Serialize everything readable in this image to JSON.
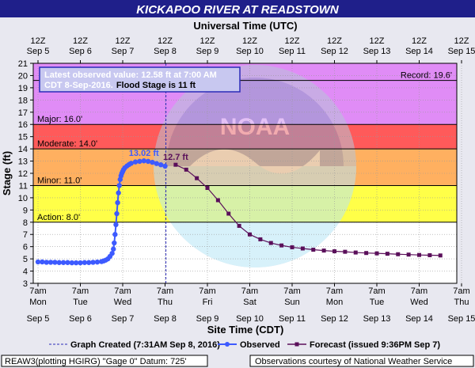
{
  "watermark": {
    "noaa": "NOAA"
  },
  "chart_data": {
    "type": "line",
    "title": "KICKAPOO RIVER AT READSTOWN",
    "top_axis_label": "Universal Time (UTC)",
    "xlabel": "Site Time (CDT)",
    "ylabel": "Stage (ft)",
    "ylim": [
      3,
      21
    ],
    "yticks": [
      3,
      4,
      5,
      6,
      7,
      8,
      9,
      10,
      11,
      12,
      13,
      14,
      15,
      16,
      17,
      18,
      19,
      20,
      21
    ],
    "x_unit": "days after Sep 5 7am CDT",
    "xlim": [
      0,
      10
    ],
    "top_ticks": [
      {
        "x": 0,
        "line1": "12Z",
        "line2": "Sep  5"
      },
      {
        "x": 1,
        "line1": "12Z",
        "line2": "Sep  6"
      },
      {
        "x": 2,
        "line1": "12Z",
        "line2": "Sep  7"
      },
      {
        "x": 3,
        "line1": "12Z",
        "line2": "Sep  8"
      },
      {
        "x": 4,
        "line1": "12Z",
        "line2": "Sep  9"
      },
      {
        "x": 5,
        "line1": "12Z",
        "line2": "Sep 10"
      },
      {
        "x": 6,
        "line1": "12Z",
        "line2": "Sep 11"
      },
      {
        "x": 7,
        "line1": "12Z",
        "line2": "Sep 12"
      },
      {
        "x": 8,
        "line1": "12Z",
        "line2": "Sep 13"
      },
      {
        "x": 9,
        "line1": "12Z",
        "line2": "Sep 14"
      },
      {
        "x": 10,
        "line1": "12Z",
        "line2": "Sep 15"
      }
    ],
    "bottom_ticks": [
      {
        "x": 0,
        "time": "7am",
        "day": "Mon",
        "date": "Sep 5"
      },
      {
        "x": 1,
        "time": "7am",
        "day": "Tue",
        "date": "Sep 6"
      },
      {
        "x": 2,
        "time": "7am",
        "day": "Wed",
        "date": "Sep 7"
      },
      {
        "x": 3,
        "time": "7am",
        "day": "Thu",
        "date": "Sep 8"
      },
      {
        "x": 4,
        "time": "7am",
        "day": "Fri",
        "date": "Sep 9"
      },
      {
        "x": 5,
        "time": "7am",
        "day": "Sat",
        "date": "Sep 10"
      },
      {
        "x": 6,
        "time": "7am",
        "day": "Sun",
        "date": "Sep 11"
      },
      {
        "x": 7,
        "time": "7am",
        "day": "Mon",
        "date": "Sep 12"
      },
      {
        "x": 8,
        "time": "7am",
        "day": "Tue",
        "date": "Sep 13"
      },
      {
        "x": 9,
        "time": "7am",
        "day": "Wed",
        "date": "Sep 14"
      },
      {
        "x": 10,
        "time": "7am",
        "day": "Thu",
        "date": "Sep 15"
      }
    ],
    "flood_categories": [
      {
        "name": "Record",
        "label": "Record: 19.6'",
        "from": 19.6,
        "to": 21,
        "color": "#e08cf6"
      },
      {
        "name": "Major",
        "label": "Major: 16.0'",
        "from": 16,
        "to": 19.6,
        "color": "#e08cf6"
      },
      {
        "name": "Moderate",
        "label": "Moderate: 14.0'",
        "from": 14,
        "to": 16,
        "color": "#ff5a5a"
      },
      {
        "name": "Minor",
        "label": "Minor: 11.0'",
        "from": 11,
        "to": 14,
        "color": "#ffb060"
      },
      {
        "name": "Action",
        "label": "Action: 8.0'",
        "from": 8,
        "to": 11,
        "color": "#ffff48"
      }
    ],
    "graph_created_x": 3.02,
    "series": [
      {
        "name": "Observed",
        "color": "#3d5aff",
        "x": [
          0,
          0.1,
          0.2,
          0.3,
          0.4,
          0.5,
          0.6,
          0.7,
          0.8,
          0.9,
          1.0,
          1.1,
          1.2,
          1.3,
          1.4,
          1.5,
          1.55,
          1.6,
          1.65,
          1.7,
          1.75,
          1.78,
          1.8,
          1.82,
          1.84,
          1.86,
          1.88,
          1.9,
          1.92,
          1.94,
          1.96,
          1.98,
          2.0,
          2.02,
          2.05,
          2.1,
          2.15,
          2.2,
          2.3,
          2.4,
          2.5,
          2.6,
          2.7,
          2.8,
          2.9,
          3.0
        ],
        "values": [
          4.75,
          4.75,
          4.72,
          4.72,
          4.72,
          4.7,
          4.7,
          4.7,
          4.68,
          4.68,
          4.68,
          4.7,
          4.7,
          4.72,
          4.74,
          4.78,
          4.83,
          4.9,
          5.0,
          5.2,
          5.45,
          5.8,
          6.3,
          7.0,
          7.8,
          8.7,
          9.6,
          10.4,
          11.0,
          11.5,
          11.8,
          12.0,
          12.15,
          12.3,
          12.45,
          12.6,
          12.72,
          12.82,
          12.93,
          12.98,
          13.02,
          12.98,
          12.9,
          12.8,
          12.7,
          12.58
        ]
      },
      {
        "name": "Forecast",
        "color": "#5a0f5a",
        "x": [
          3.25,
          3.5,
          3.75,
          4.0,
          4.25,
          4.5,
          4.75,
          5.0,
          5.25,
          5.5,
          5.75,
          6.0,
          6.25,
          6.5,
          6.75,
          7.0,
          7.25,
          7.5,
          7.75,
          8.0,
          8.25,
          8.5,
          8.75,
          9.0,
          9.25,
          9.5
        ],
        "values": [
          12.7,
          12.3,
          11.6,
          10.8,
          9.8,
          8.7,
          7.7,
          7.0,
          6.6,
          6.3,
          6.1,
          5.95,
          5.85,
          5.75,
          5.68,
          5.62,
          5.58,
          5.52,
          5.48,
          5.45,
          5.42,
          5.38,
          5.35,
          5.32,
          5.3,
          5.28
        ]
      }
    ],
    "peak_labels": [
      {
        "text": "13.02 ft",
        "x": 2.5,
        "y": 13.02,
        "color": "#3d5aff"
      },
      {
        "text": "12.7 ft",
        "x": 3.25,
        "y": 12.7,
        "color": "#5a0f5a"
      }
    ],
    "info_box": {
      "line1": "Latest observed value: 12.58 ft at 7:00 AM",
      "line2_date": "CDT 8-Sep-2016.",
      "line2_flood": "Flood Stage is 11 ft"
    },
    "legend": {
      "graph_created": "Graph Created (7:31AM Sep 8, 2016)",
      "observed": "Observed",
      "forecast": "Forecast (issued 9:36PM Sep 7)"
    },
    "footer": {
      "gauge_info": "REAW3(plotting HGIRG) \"Gage 0\" Datum: 725'",
      "courtesy": "Observations courtesy of National Weather Service"
    }
  }
}
